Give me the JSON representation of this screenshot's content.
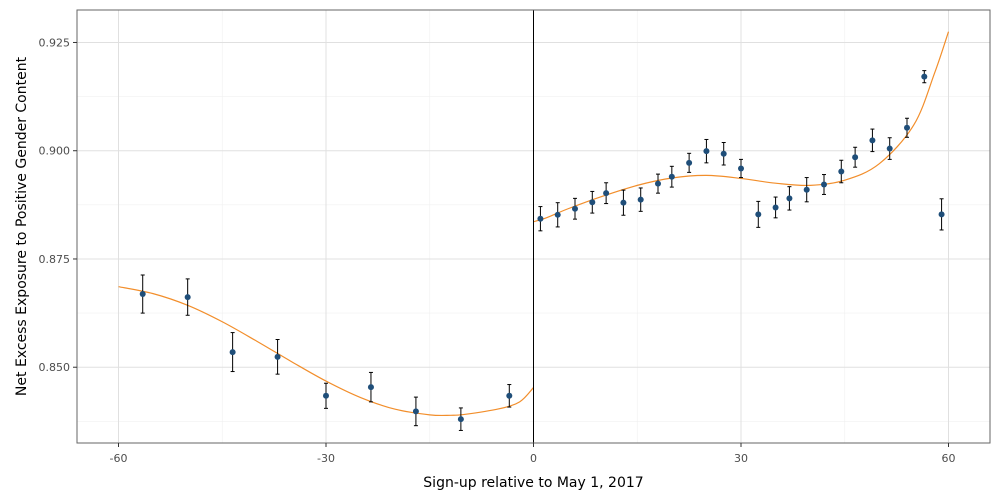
{
  "chart_data": {
    "type": "scatter",
    "xlabel": "Sign-up relative to May 1, 2017",
    "ylabel": "Net Excess Exposure to Positive Gender Content",
    "xlim": [
      -66,
      66
    ],
    "ylim": [
      0.8325,
      0.9325
    ],
    "x_ticks": [
      -60,
      -30,
      0,
      30,
      60
    ],
    "x_tick_labels": [
      "-60",
      "-30",
      "0",
      "30",
      "60"
    ],
    "y_ticks": [
      0.85,
      0.875,
      0.9,
      0.925
    ],
    "y_tick_labels": [
      "0.850",
      "0.875",
      "0.900",
      "0.925"
    ],
    "grid": true,
    "cutoff_line_x": 0,
    "colors": {
      "points": "#1f4e79",
      "fit": "#f28e2b",
      "errorbar": "#000000",
      "cutoff": "#000000",
      "grid": "#e0e0e0",
      "frame": "#666666"
    },
    "points": [
      {
        "x": -56.5,
        "y": 0.8669,
        "lo": 0.8625,
        "hi": 0.8713
      },
      {
        "x": -50,
        "y": 0.8662,
        "lo": 0.862,
        "hi": 0.8704
      },
      {
        "x": -43.5,
        "y": 0.8535,
        "lo": 0.849,
        "hi": 0.858
      },
      {
        "x": -37,
        "y": 0.8524,
        "lo": 0.8484,
        "hi": 0.8564
      },
      {
        "x": -30,
        "y": 0.8434,
        "lo": 0.8405,
        "hi": 0.8463
      },
      {
        "x": -23.5,
        "y": 0.8454,
        "lo": 0.842,
        "hi": 0.8488
      },
      {
        "x": -17,
        "y": 0.8398,
        "lo": 0.8365,
        "hi": 0.8431
      },
      {
        "x": -10.5,
        "y": 0.838,
        "lo": 0.8354,
        "hi": 0.8406
      },
      {
        "x": -3.5,
        "y": 0.8434,
        "lo": 0.8408,
        "hi": 0.846
      },
      {
        "x": 1,
        "y": 0.8843,
        "lo": 0.8815,
        "hi": 0.8871
      },
      {
        "x": 3.5,
        "y": 0.8852,
        "lo": 0.8824,
        "hi": 0.888
      },
      {
        "x": 6,
        "y": 0.8866,
        "lo": 0.8842,
        "hi": 0.889
      },
      {
        "x": 8.5,
        "y": 0.8881,
        "lo": 0.8856,
        "hi": 0.8906
      },
      {
        "x": 10.5,
        "y": 0.8902,
        "lo": 0.8878,
        "hi": 0.8926
      },
      {
        "x": 13,
        "y": 0.888,
        "lo": 0.8851,
        "hi": 0.8909
      },
      {
        "x": 15.5,
        "y": 0.8887,
        "lo": 0.886,
        "hi": 0.8914
      },
      {
        "x": 18,
        "y": 0.8924,
        "lo": 0.8902,
        "hi": 0.8946
      },
      {
        "x": 20,
        "y": 0.894,
        "lo": 0.8916,
        "hi": 0.8964
      },
      {
        "x": 22.5,
        "y": 0.8972,
        "lo": 0.895,
        "hi": 0.8994
      },
      {
        "x": 25,
        "y": 0.8999,
        "lo": 0.8972,
        "hi": 0.9026
      },
      {
        "x": 27.5,
        "y": 0.8993,
        "lo": 0.8967,
        "hi": 0.9019
      },
      {
        "x": 30,
        "y": 0.8959,
        "lo": 0.8938,
        "hi": 0.898
      },
      {
        "x": 32.5,
        "y": 0.8853,
        "lo": 0.8823,
        "hi": 0.8883
      },
      {
        "x": 35,
        "y": 0.8869,
        "lo": 0.8845,
        "hi": 0.8893
      },
      {
        "x": 37,
        "y": 0.889,
        "lo": 0.8863,
        "hi": 0.8917
      },
      {
        "x": 39.5,
        "y": 0.891,
        "lo": 0.8882,
        "hi": 0.8938
      },
      {
        "x": 42,
        "y": 0.8922,
        "lo": 0.8899,
        "hi": 0.8945
      },
      {
        "x": 44.5,
        "y": 0.8952,
        "lo": 0.8926,
        "hi": 0.8978
      },
      {
        "x": 46.5,
        "y": 0.8985,
        "lo": 0.8962,
        "hi": 0.9008
      },
      {
        "x": 49,
        "y": 0.9024,
        "lo": 0.8998,
        "hi": 0.905
      },
      {
        "x": 51.5,
        "y": 0.9005,
        "lo": 0.898,
        "hi": 0.903
      },
      {
        "x": 54,
        "y": 0.9053,
        "lo": 0.9031,
        "hi": 0.9075
      },
      {
        "x": 56.5,
        "y": 0.9171,
        "lo": 0.9157,
        "hi": 0.9185
      },
      {
        "x": 59,
        "y": 0.8853,
        "lo": 0.8817,
        "hi": 0.8889
      }
    ],
    "fit_left": [
      [
        -60,
        0.8686
      ],
      [
        -55,
        0.867
      ],
      [
        -50,
        0.8643
      ],
      [
        -45,
        0.8605
      ],
      [
        -40,
        0.856
      ],
      [
        -35,
        0.8513
      ],
      [
        -30,
        0.8468
      ],
      [
        -25,
        0.843
      ],
      [
        -20,
        0.8403
      ],
      [
        -15,
        0.839
      ],
      [
        -12,
        0.8389
      ],
      [
        -10,
        0.8391
      ],
      [
        -5,
        0.8404
      ],
      [
        -2,
        0.842
      ],
      [
        0,
        0.8453
      ]
    ],
    "fit_right": [
      [
        0,
        0.8836
      ],
      [
        2,
        0.8846
      ],
      [
        5,
        0.8866
      ],
      [
        10,
        0.8895
      ],
      [
        15,
        0.892
      ],
      [
        20,
        0.8937
      ],
      [
        25,
        0.8943
      ],
      [
        30,
        0.8936
      ],
      [
        35,
        0.8925
      ],
      [
        40,
        0.892
      ],
      [
        45,
        0.8932
      ],
      [
        50,
        0.897
      ],
      [
        55,
        0.906
      ],
      [
        58,
        0.918
      ],
      [
        60,
        0.9275
      ]
    ]
  }
}
